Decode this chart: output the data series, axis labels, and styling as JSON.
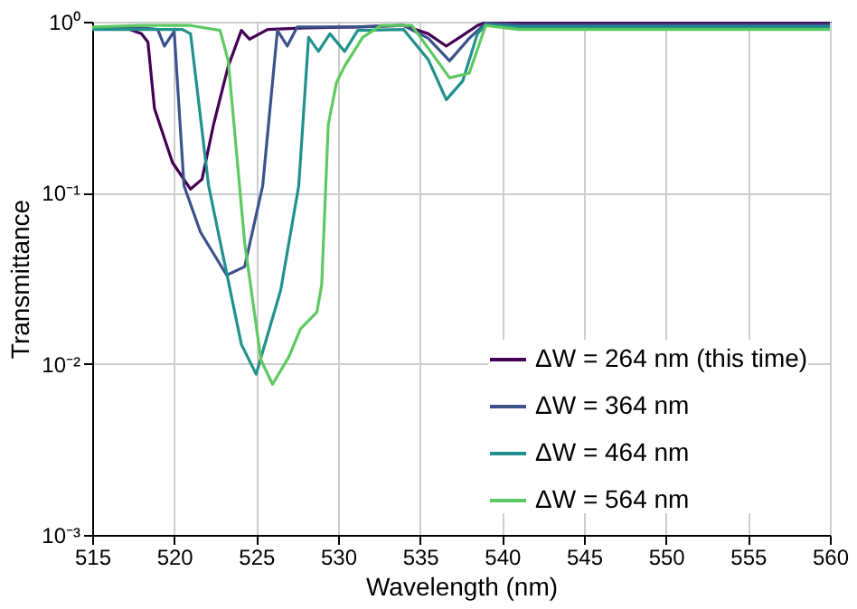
{
  "chart_data": {
    "type": "line",
    "xlabel": "Wavelength (nm)",
    "ylabel": "Transmittance",
    "log": "y",
    "grid": true,
    "legend": "bottom right",
    "xlim": [
      515,
      560
    ],
    "xticks": [
      515,
      520,
      525,
      530,
      535,
      540,
      545,
      550,
      555,
      560
    ],
    "ylim": [
      0.001,
      1
    ],
    "yticks": [
      {
        "value": 0.001,
        "label": "10⁻³"
      },
      {
        "value": 0.01,
        "label": "10⁻²"
      },
      {
        "value": 0.1,
        "label": "10⁻¹"
      },
      {
        "value": 1,
        "label": "10⁰"
      }
    ],
    "series": [
      {
        "name": "ΔW = 264 nm (this time)",
        "color": "#440154",
        "x": [
          515,
          517,
          518,
          518.4,
          518.8,
          519.9,
          521,
          521.7,
          522.4,
          523.3,
          524.1,
          524.6,
          525.7,
          528,
          531,
          534,
          535.5,
          536.6,
          537.5,
          538.5,
          539,
          541,
          545,
          550,
          555,
          560
        ],
        "values": [
          0.92,
          0.92,
          0.85,
          0.76,
          0.31,
          0.15,
          0.105,
          0.12,
          0.25,
          0.55,
          0.89,
          0.79,
          0.9,
          0.92,
          0.93,
          0.95,
          0.85,
          0.72,
          0.82,
          0.95,
          0.99,
          0.99,
          0.99,
          0.99,
          0.99,
          0.99
        ]
      },
      {
        "name": "ΔW = 364 nm",
        "color": "#3b528b",
        "x": [
          515,
          518,
          519,
          519.4,
          520,
          520.6,
          521.6,
          523.2,
          524.3,
          525.4,
          526.3,
          526.9,
          527.5,
          531,
          534,
          535.5,
          536.8,
          538,
          539,
          541,
          545,
          550,
          555,
          560
        ],
        "values": [
          0.92,
          0.92,
          0.9,
          0.72,
          0.88,
          0.11,
          0.059,
          0.033,
          0.037,
          0.11,
          0.89,
          0.72,
          0.93,
          0.93,
          0.95,
          0.8,
          0.59,
          0.8,
          0.98,
          0.96,
          0.96,
          0.96,
          0.96,
          0.96
        ]
      },
      {
        "name": "ΔW = 464 nm",
        "color": "#21918c",
        "x": [
          515,
          518,
          520.5,
          521,
          522.1,
          524.1,
          525,
          526.5,
          527.6,
          528.2,
          528.8,
          529.5,
          530.4,
          531.2,
          534,
          535.5,
          536.6,
          537.6,
          538.5,
          539,
          541,
          545,
          550,
          555,
          560
        ],
        "values": [
          0.9,
          0.9,
          0.9,
          0.85,
          0.11,
          0.013,
          0.0087,
          0.027,
          0.11,
          0.81,
          0.67,
          0.85,
          0.67,
          0.89,
          0.9,
          0.6,
          0.35,
          0.45,
          0.85,
          0.96,
          0.93,
          0.93,
          0.93,
          0.93,
          0.93
        ]
      },
      {
        "name": "ΔW = 564 nm",
        "color": "#5ec962",
        "x": [
          515,
          518,
          521,
          522.8,
          523.3,
          524.3,
          525.3,
          526,
          527,
          527.7,
          528.7,
          529,
          529.4,
          529.9,
          530.4,
          531.5,
          532.6,
          534.5,
          535.5,
          536.8,
          538,
          539,
          541,
          545,
          550,
          555,
          560
        ],
        "values": [
          0.93,
          0.95,
          0.95,
          0.89,
          0.59,
          0.051,
          0.0105,
          0.0076,
          0.011,
          0.016,
          0.02,
          0.029,
          0.25,
          0.44,
          0.55,
          0.81,
          0.95,
          0.95,
          0.7,
          0.47,
          0.5,
          0.95,
          0.9,
          0.9,
          0.9,
          0.9,
          0.9
        ]
      }
    ]
  }
}
